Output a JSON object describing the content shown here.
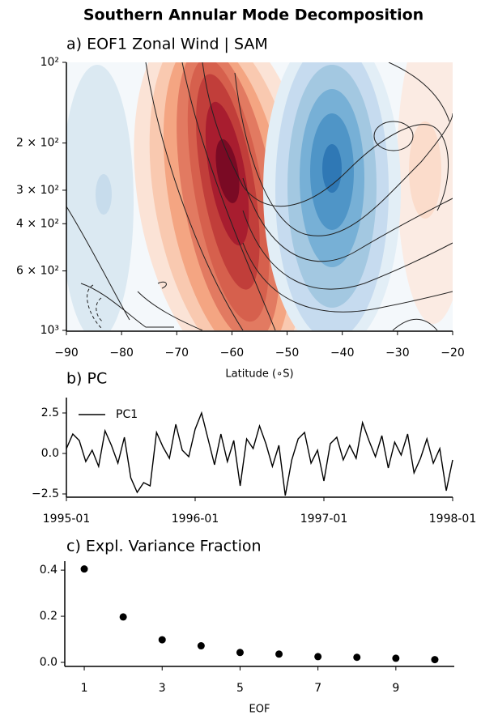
{
  "title": "Southern Annular Mode Decomposition",
  "chart_data": [
    {
      "type": "contour",
      "title": "a) EOF1 Zonal Wind | SAM",
      "xlabel": "Latitude (∘S)",
      "xlim": [
        -90,
        -20
      ],
      "xticks": [
        {
          "value": -90,
          "label": "−90"
        },
        {
          "value": -80,
          "label": "−80"
        },
        {
          "value": -70,
          "label": "−70"
        },
        {
          "value": -60,
          "label": "−60"
        },
        {
          "value": -50,
          "label": "−50"
        },
        {
          "value": -40,
          "label": "−40"
        },
        {
          "value": -30,
          "label": "−30"
        },
        {
          "value": -20,
          "label": "−20"
        }
      ],
      "ylim": [
        100,
        1000
      ],
      "log_y": true,
      "invert_y": true,
      "yticks": [
        {
          "value": 100,
          "label": "10²"
        },
        {
          "value": 200,
          "label": "2 × 10²"
        },
        {
          "value": 300,
          "label": "3 × 10²"
        },
        {
          "value": 400,
          "label": "4 × 10²"
        },
        {
          "value": 600,
          "label": "6 × 10²"
        },
        {
          "value": 1000,
          "label": "10³"
        }
      ]
    },
    {
      "type": "line",
      "title": "b) PC",
      "legend": "upper left",
      "x": [
        1995.0,
        1995.05,
        1995.1,
        1995.15,
        1995.2,
        1995.25,
        1995.3,
        1995.35,
        1995.4,
        1995.45,
        1995.5,
        1995.55,
        1995.6,
        1995.65,
        1995.7,
        1995.75,
        1995.8,
        1995.85,
        1995.9,
        1995.95,
        1996.0,
        1996.05,
        1996.1,
        1996.15,
        1996.2,
        1996.25,
        1996.3,
        1996.35,
        1996.4,
        1996.45,
        1996.5,
        1996.55,
        1996.6,
        1996.65,
        1996.7,
        1996.75,
        1996.8,
        1996.85,
        1996.9,
        1996.95,
        1997.0,
        1997.05,
        1997.1,
        1997.15,
        1997.2,
        1997.25,
        1997.3,
        1997.35,
        1997.4,
        1997.45,
        1997.5,
        1997.55,
        1997.6,
        1997.65,
        1997.7,
        1997.75,
        1997.8,
        1997.85,
        1997.9,
        1997.95,
        1998.0
      ],
      "series": [
        {
          "name": "PC1",
          "color": "#000000",
          "values": [
            0.3,
            1.2,
            0.8,
            -0.5,
            0.2,
            -0.8,
            1.4,
            0.5,
            -0.6,
            1.0,
            -1.5,
            -2.4,
            -1.8,
            -2.0,
            1.3,
            0.4,
            -0.3,
            1.8,
            0.2,
            -0.2,
            1.5,
            2.5,
            0.9,
            -0.7,
            1.2,
            -0.5,
            0.8,
            -2.0,
            0.9,
            0.3,
            1.7,
            0.6,
            -0.8,
            0.5,
            -2.6,
            -0.4,
            0.9,
            1.3,
            -0.6,
            0.2,
            -1.7,
            0.6,
            1.0,
            -0.4,
            0.5,
            -0.3,
            1.9,
            0.8,
            -0.2,
            1.1,
            -0.9,
            0.7,
            -0.1,
            1.2,
            -1.2,
            -0.3,
            0.9,
            -0.6,
            0.3,
            -2.3,
            -0.4
          ]
        }
      ],
      "xlim": [
        1995,
        1998
      ],
      "xticks": [
        {
          "value": 1995,
          "label": "1995-01"
        },
        {
          "value": 1996,
          "label": "1996-01"
        },
        {
          "value": 1997,
          "label": "1997-01"
        },
        {
          "value": 1998,
          "label": "1998-01"
        }
      ],
      "ylim": [
        -2.65,
        3.45
      ],
      "yticks": [
        {
          "value": -2.5,
          "label": "−2.5"
        },
        {
          "value": 0,
          "label": "0.0"
        },
        {
          "value": 2.5,
          "label": "2.5"
        }
      ]
    },
    {
      "type": "scatter",
      "title": "c) Expl. Variance Fraction",
      "xlabel": "EOF",
      "color": "#000000",
      "x": [
        1,
        2,
        3,
        4,
        5,
        6,
        7,
        8,
        9,
        10
      ],
      "values": [
        0.405,
        0.197,
        0.098,
        0.072,
        0.043,
        0.036,
        0.025,
        0.022,
        0.018,
        0.012
      ],
      "xlim": [
        0.5,
        10.5
      ],
      "xticks": [
        1,
        3,
        5,
        7,
        9
      ],
      "ylim": [
        -0.014,
        0.439
      ],
      "yticks": [
        {
          "value": 0,
          "label": "0.0"
        },
        {
          "value": 0.2,
          "label": "0.2"
        },
        {
          "value": 0.4,
          "label": "0.4"
        }
      ]
    }
  ]
}
